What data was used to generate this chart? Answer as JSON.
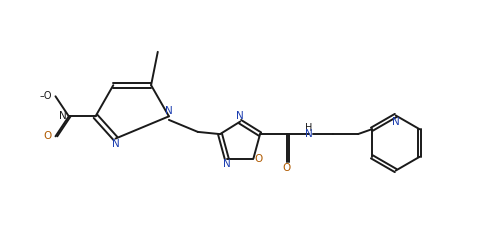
{
  "bg_color": "#ffffff",
  "line_color": "#1a1a1a",
  "N_color": "#1a3cb0",
  "O_color": "#b05a00",
  "figsize": [
    4.89,
    2.46
  ],
  "dpi": 100,
  "lw": 1.4,
  "fs": 7.5,
  "xlim": [
    0.0,
    9.5
  ],
  "ylim": [
    0.0,
    5.5
  ]
}
